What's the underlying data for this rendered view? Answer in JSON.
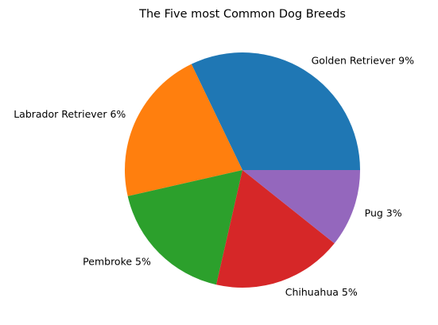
{
  "chart_data": {
    "type": "pie",
    "title": "The Five most Common Dog Breeds",
    "start_angle_deg": 0,
    "direction": "counterclockwise",
    "legend": "none",
    "slices": [
      {
        "label": "Golden Retriever 9%",
        "value": 9,
        "color": "#1f77b4"
      },
      {
        "label": "Labrador Retriever 6%",
        "value": 6,
        "color": "#ff7f0e"
      },
      {
        "label": "Pembroke 5%",
        "value": 5,
        "color": "#2ca02c"
      },
      {
        "label": "Chihuahua 5%",
        "value": 5,
        "color": "#d62728"
      },
      {
        "label": "Pug 3%",
        "value": 3,
        "color": "#9467bd"
      }
    ]
  }
}
